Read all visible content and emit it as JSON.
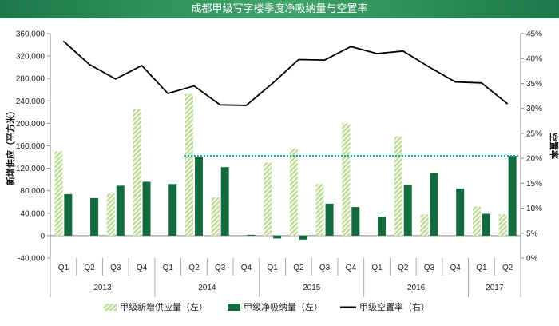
{
  "title": "成都甲级写字楼季度净吸纳量与空置率",
  "colors": {
    "title_bg": "#2e8b57",
    "supply": "#b5d77f",
    "absorption": "#136b3d",
    "vacancy": "#000000",
    "reference": "#1aa5c8"
  },
  "chart_data": {
    "type": "bar",
    "quarters": [
      "Q1",
      "Q2",
      "Q3",
      "Q4",
      "Q1",
      "Q2",
      "Q3",
      "Q4",
      "Q1",
      "Q2",
      "Q3",
      "Q4",
      "Q1",
      "Q2",
      "Q3",
      "Q4",
      "Q1",
      "Q2"
    ],
    "years": [
      {
        "label": "2013",
        "count": 4
      },
      {
        "label": "2014",
        "count": 4
      },
      {
        "label": "2015",
        "count": 4
      },
      {
        "label": "2016",
        "count": 4
      },
      {
        "label": "2017",
        "count": 2
      }
    ],
    "series": [
      {
        "name": "甲级新增供应量（左）",
        "kind": "bar-hatched",
        "axis": "left",
        "values": [
          150000,
          0,
          75000,
          225000,
          0,
          252000,
          68000,
          0,
          130000,
          155000,
          92000,
          200000,
          0,
          177000,
          38000,
          0,
          52000,
          38000
        ]
      },
      {
        "name": "甲级净吸纳量（左）",
        "kind": "bar",
        "axis": "left",
        "values": [
          74000,
          67000,
          89000,
          96000,
          92000,
          140000,
          122000,
          1500,
          -5000,
          -7000,
          57000,
          51000,
          34000,
          90000,
          112000,
          84000,
          39000,
          142000
        ]
      },
      {
        "name": "甲级空置率（右）",
        "kind": "line",
        "axis": "right",
        "values": [
          43.5,
          38.8,
          35.9,
          38.6,
          33.0,
          34.5,
          30.7,
          30.6,
          35.0,
          39.8,
          39.7,
          42.4,
          41.0,
          41.5,
          38.3,
          35.3,
          35.1,
          30.9
        ]
      }
    ],
    "reference_line": {
      "value": 142000
    },
    "y_left": {
      "label": "新增供应（平方米）",
      "min": -40000,
      "max": 360000,
      "ticks": [
        "360,000",
        "320,000",
        "280,000",
        "240,000",
        "200,000",
        "160,000",
        "120,000",
        "80,000",
        "40,000",
        "0",
        "-40,000"
      ]
    },
    "y_right": {
      "label": "空置率",
      "min": 0,
      "max": 45,
      "ticks": [
        "45%",
        "40%",
        "35%",
        "30%",
        "25%",
        "20%",
        "15%",
        "10%",
        "5%",
        "0%"
      ]
    },
    "legend_position": "bottom"
  }
}
